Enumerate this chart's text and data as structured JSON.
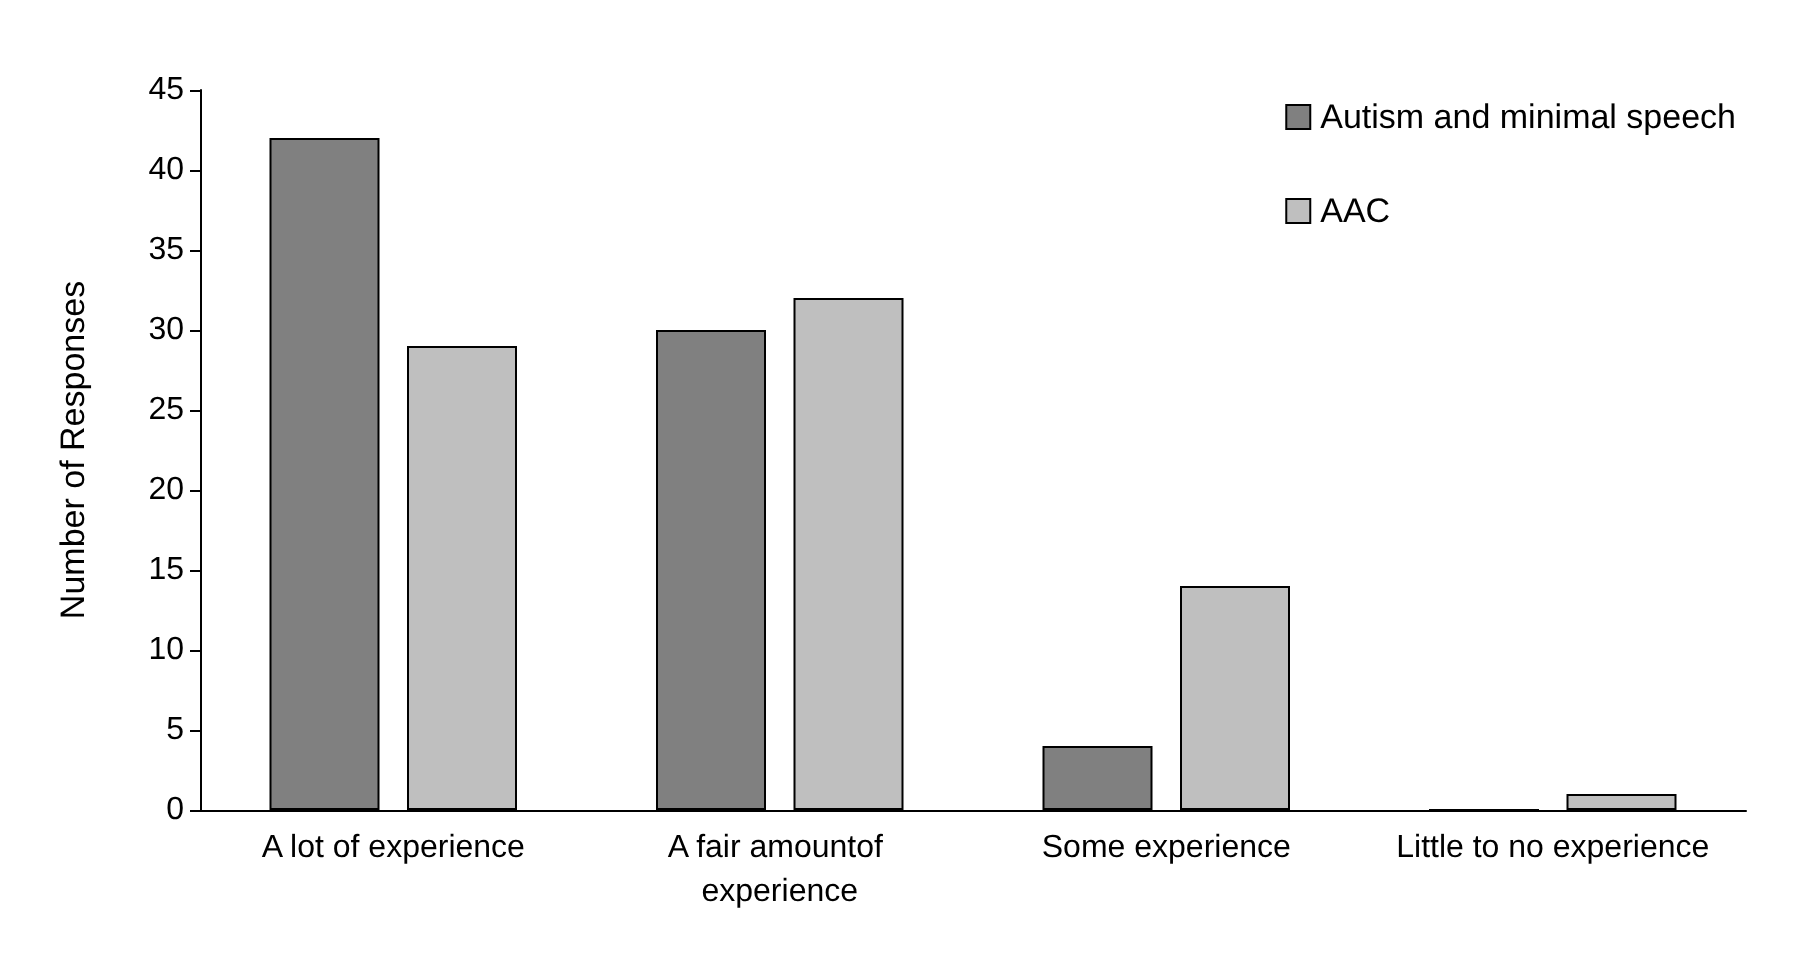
{
  "chart_data": {
    "type": "bar",
    "ylabel": "Number of Responses",
    "categories": [
      "A lot of experience",
      "A fair amountof experience",
      "Some experience",
      "Little to no experience"
    ],
    "series": [
      {
        "name": "Autism and minimal speech",
        "color": "#808080",
        "values": [
          42,
          30,
          4,
          0
        ]
      },
      {
        "name": "AAC",
        "color": "#bfbfbf",
        "values": [
          29,
          32,
          14,
          1
        ]
      }
    ],
    "ylim": [
      0,
      45
    ],
    "yticks": [
      0,
      5,
      10,
      15,
      20,
      25,
      30,
      35,
      40,
      45
    ],
    "grid": false,
    "legend": "top right"
  }
}
